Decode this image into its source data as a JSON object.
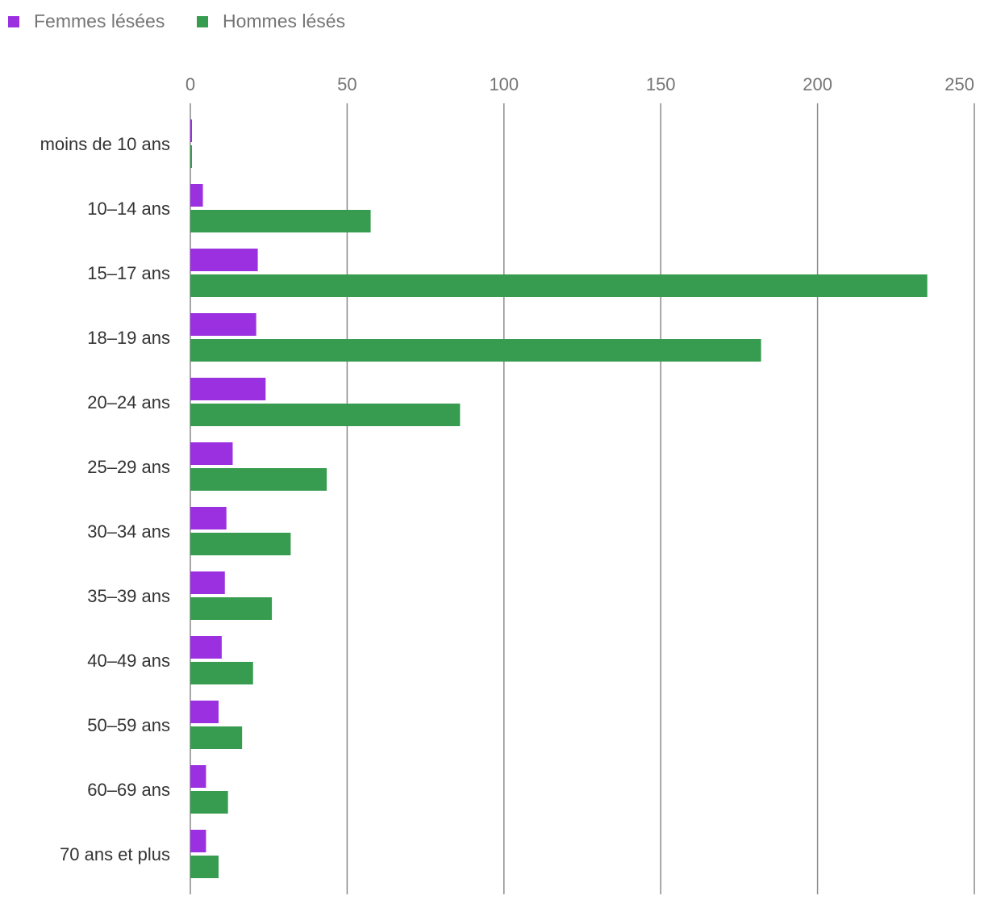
{
  "chart_data": {
    "type": "bar",
    "orientation": "horizontal",
    "categories": [
      "moins de 10 ans",
      "10–14 ans",
      "15–17 ans",
      "18–19 ans",
      "20–24 ans",
      "25–29 ans",
      "30–34 ans",
      "35–39 ans",
      "40–49 ans",
      "50–59 ans",
      "60–69 ans",
      "70 ans et plus"
    ],
    "series": [
      {
        "name": "Femmes lésées",
        "color": "#9b30e0",
        "values": [
          0.5,
          4,
          21.5,
          21,
          24,
          13.5,
          11.5,
          11,
          10,
          9,
          5,
          5
        ]
      },
      {
        "name": "Hommes lésés",
        "color": "#379c4f",
        "values": [
          0.5,
          57.5,
          235,
          182,
          86,
          43.5,
          32,
          26,
          20,
          16.5,
          12,
          9
        ]
      }
    ],
    "xlim": [
      0,
      250
    ],
    "xticks": [
      0,
      50,
      100,
      150,
      200,
      250
    ],
    "grid": true,
    "legend_position": "top-left",
    "title": "",
    "xlabel": "",
    "ylabel": ""
  }
}
